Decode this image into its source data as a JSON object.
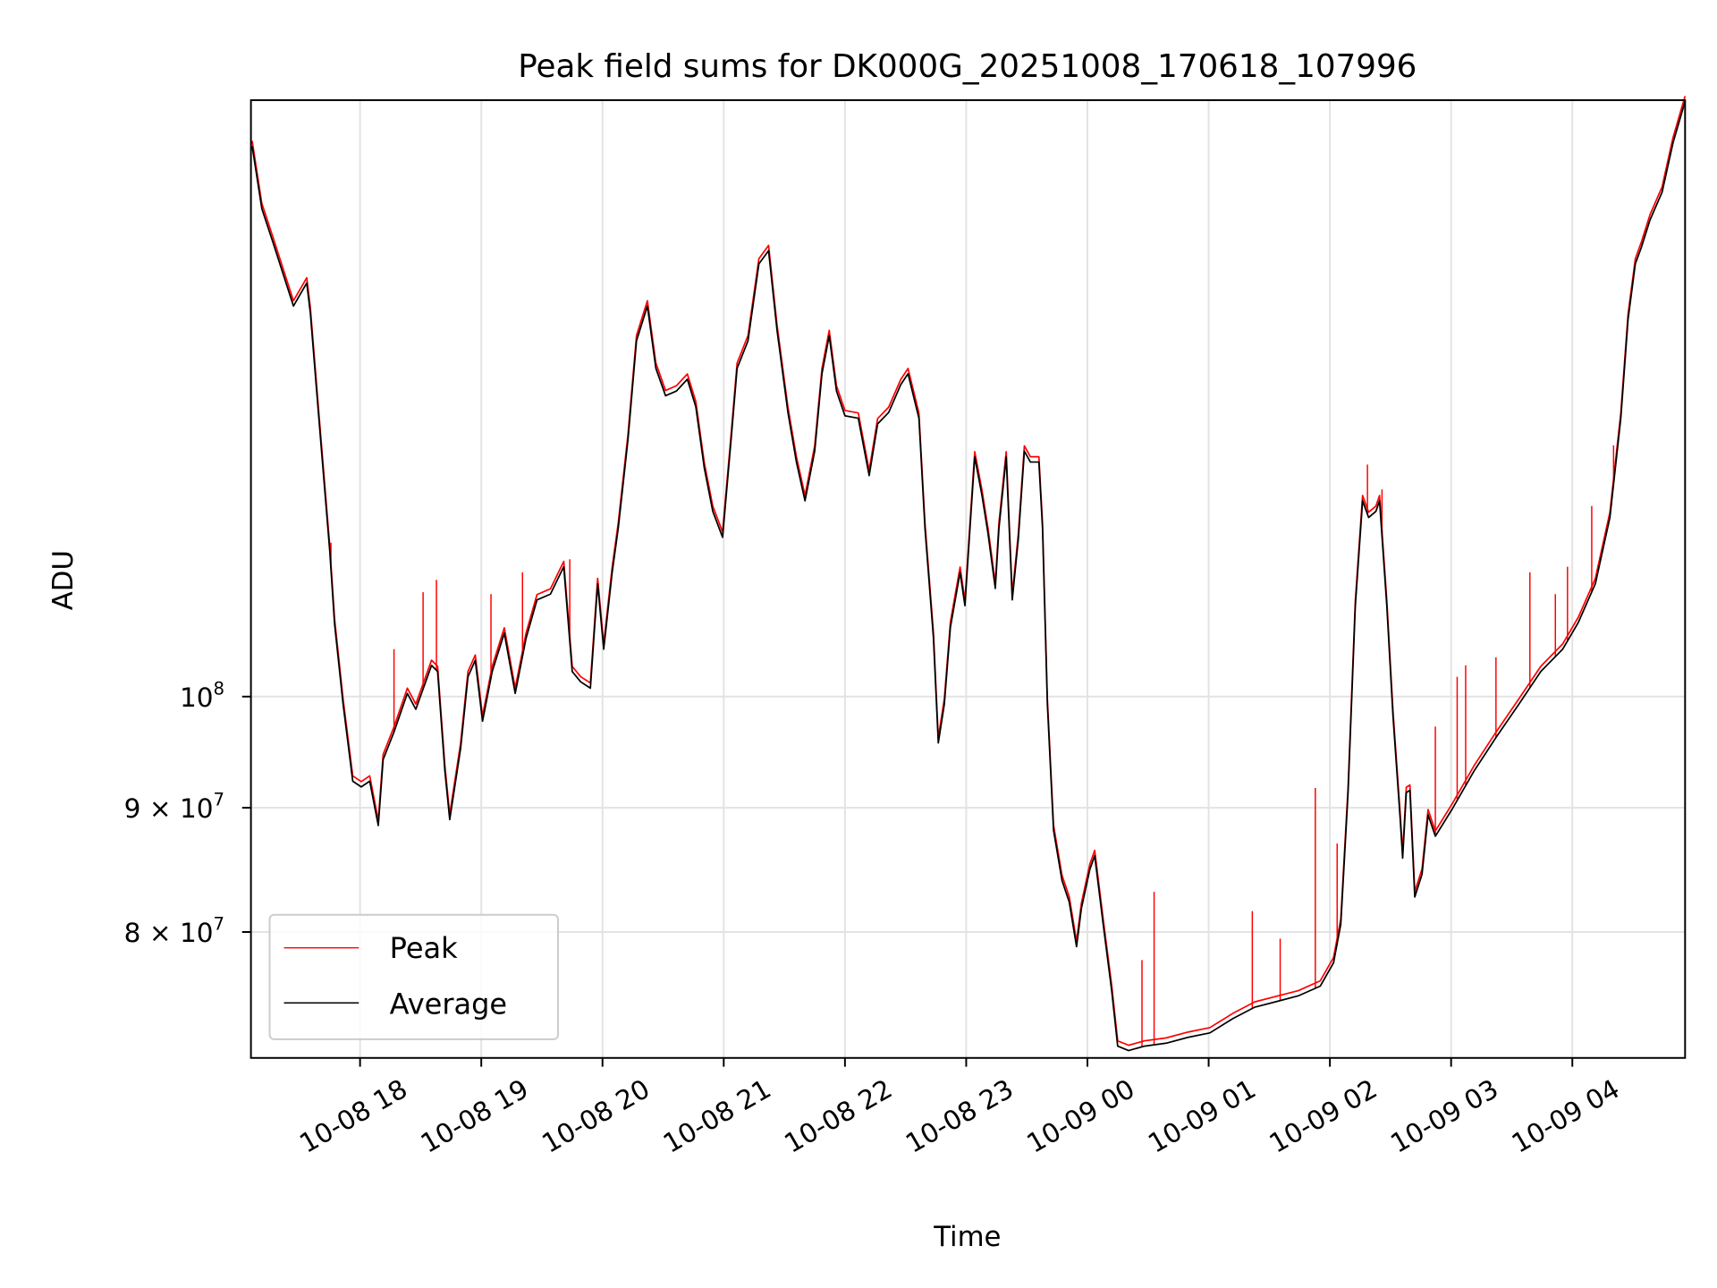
{
  "chart_data": {
    "type": "line",
    "title": "Peak field sums for DK000G_20251008_170618_107996",
    "xlabel": "Time",
    "ylabel": "ADU",
    "x_units": "hours since 10-08 00:00",
    "xlim": [
      17.1,
      28.93
    ],
    "ylim": [
      71000000,
      176000000
    ],
    "yscale": "log",
    "grid": true,
    "legend_placement": "lower-left",
    "x_ticks": [
      {
        "value": 18,
        "label": "10-08 18"
      },
      {
        "value": 19,
        "label": "10-08 19"
      },
      {
        "value": 20,
        "label": "10-08 20"
      },
      {
        "value": 21,
        "label": "10-08 21"
      },
      {
        "value": 22,
        "label": "10-08 22"
      },
      {
        "value": 23,
        "label": "10-08 23"
      },
      {
        "value": 24,
        "label": "10-09 00"
      },
      {
        "value": 25,
        "label": "10-09 01"
      },
      {
        "value": 26,
        "label": "10-09 02"
      },
      {
        "value": 27,
        "label": "10-09 03"
      },
      {
        "value": 28,
        "label": "10-09 04"
      }
    ],
    "y_ticks": [
      {
        "value": 100000000,
        "mant": "10",
        "coef": "",
        "exp": "8"
      },
      {
        "value": 90000000,
        "mant": "10",
        "coef": "9 × ",
        "exp": "7"
      },
      {
        "value": 80000000,
        "mant": "10",
        "coef": "8 × ",
        "exp": "7"
      }
    ],
    "series": [
      {
        "name": "Average",
        "color": "#000000",
        "points": [
          [
            17.11,
            168.5
          ],
          [
            17.19,
            158.8
          ],
          [
            17.28,
            153.9
          ],
          [
            17.45,
            144.8
          ],
          [
            17.56,
            148.0
          ],
          [
            17.59,
            143.8
          ],
          [
            17.66,
            130.2
          ],
          [
            17.75,
            114.8
          ],
          [
            17.79,
            107.1
          ],
          [
            17.86,
            99.3
          ],
          [
            17.94,
            92.3
          ],
          [
            18.01,
            91.8
          ],
          [
            18.08,
            92.3
          ],
          [
            18.15,
            88.5
          ],
          [
            18.19,
            94.2
          ],
          [
            18.28,
            96.7
          ],
          [
            18.39,
            100.3
          ],
          [
            18.46,
            98.8
          ],
          [
            18.59,
            103.0
          ],
          [
            18.64,
            102.4
          ],
          [
            18.7,
            93.2
          ],
          [
            18.74,
            89.0
          ],
          [
            18.83,
            95.2
          ],
          [
            18.89,
            101.9
          ],
          [
            18.95,
            103.5
          ],
          [
            19.01,
            97.7
          ],
          [
            19.09,
            102.4
          ],
          [
            19.19,
            106.2
          ],
          [
            19.28,
            100.3
          ],
          [
            19.37,
            105.7
          ],
          [
            19.46,
            109.6
          ],
          [
            19.57,
            110.2
          ],
          [
            19.68,
            113.1
          ],
          [
            19.75,
            102.4
          ],
          [
            19.82,
            101.4
          ],
          [
            19.9,
            100.8
          ],
          [
            19.96,
            111.3
          ],
          [
            20.01,
            104.6
          ],
          [
            20.08,
            112.5
          ],
          [
            20.13,
            117.3
          ],
          [
            20.21,
            127.5
          ],
          [
            20.28,
            140.1
          ],
          [
            20.37,
            144.8
          ],
          [
            20.44,
            136.5
          ],
          [
            20.52,
            133.0
          ],
          [
            20.61,
            133.6
          ],
          [
            20.7,
            135.1
          ],
          [
            20.77,
            131.6
          ],
          [
            20.84,
            124.2
          ],
          [
            20.91,
            119.2
          ],
          [
            20.99,
            116.3
          ],
          [
            21.06,
            127.5
          ],
          [
            21.11,
            136.5
          ],
          [
            21.2,
            140.1
          ],
          [
            21.29,
            150.7
          ],
          [
            21.37,
            152.6
          ],
          [
            21.44,
            141.5
          ],
          [
            21.53,
            130.9
          ],
          [
            21.6,
            124.9
          ],
          [
            21.67,
            120.4
          ],
          [
            21.75,
            126.2
          ],
          [
            21.81,
            135.8
          ],
          [
            21.87,
            140.8
          ],
          [
            21.93,
            133.6
          ],
          [
            22.0,
            130.5
          ],
          [
            22.11,
            130.2
          ],
          [
            22.2,
            123.3
          ],
          [
            22.27,
            129.5
          ],
          [
            22.36,
            130.9
          ],
          [
            22.46,
            134.4
          ],
          [
            22.52,
            135.8
          ],
          [
            22.61,
            130.2
          ],
          [
            22.66,
            117.3
          ],
          [
            22.73,
            105.7
          ],
          [
            22.77,
            95.7
          ],
          [
            22.82,
            99.3
          ],
          [
            22.87,
            106.8
          ],
          [
            22.95,
            112.5
          ],
          [
            22.99,
            109.0
          ],
          [
            23.04,
            119.2
          ],
          [
            23.07,
            125.5
          ],
          [
            23.13,
            121.0
          ],
          [
            23.18,
            116.7
          ],
          [
            23.24,
            110.8
          ],
          [
            23.27,
            117.3
          ],
          [
            23.33,
            125.5
          ],
          [
            23.38,
            109.6
          ],
          [
            23.43,
            116.1
          ],
          [
            23.48,
            126.2
          ],
          [
            23.53,
            124.9
          ],
          [
            23.6,
            124.9
          ],
          [
            23.63,
            117.3
          ],
          [
            23.67,
            99.3
          ],
          [
            23.72,
            88.1
          ],
          [
            23.79,
            84.0
          ],
          [
            23.85,
            82.3
          ],
          [
            23.91,
            78.9
          ],
          [
            23.95,
            81.8
          ],
          [
            24.02,
            84.9
          ],
          [
            24.06,
            86.0
          ],
          [
            24.13,
            80.6
          ],
          [
            24.2,
            75.7
          ],
          [
            24.25,
            71.8
          ],
          [
            24.34,
            71.5
          ],
          [
            24.47,
            71.8
          ],
          [
            24.65,
            72.0
          ],
          [
            24.83,
            72.4
          ],
          [
            25.01,
            72.7
          ],
          [
            25.2,
            73.7
          ],
          [
            25.38,
            74.5
          ],
          [
            25.56,
            74.9
          ],
          [
            25.74,
            75.3
          ],
          [
            25.92,
            76.0
          ],
          [
            26.03,
            77.7
          ],
          [
            26.09,
            80.6
          ],
          [
            26.15,
            91.3
          ],
          [
            26.21,
            109.0
          ],
          [
            26.27,
            120.4
          ],
          [
            26.32,
            118.5
          ],
          [
            26.38,
            119.2
          ],
          [
            26.41,
            120.4
          ],
          [
            26.47,
            109.0
          ],
          [
            26.52,
            98.2
          ],
          [
            26.58,
            89.0
          ],
          [
            26.6,
            85.8
          ],
          [
            26.63,
            91.3
          ],
          [
            26.66,
            91.5
          ],
          [
            26.7,
            82.7
          ],
          [
            26.76,
            84.5
          ],
          [
            26.81,
            89.4
          ],
          [
            26.87,
            87.6
          ],
          [
            27.01,
            89.9
          ],
          [
            27.19,
            93.2
          ],
          [
            27.37,
            96.2
          ],
          [
            27.56,
            99.3
          ],
          [
            27.74,
            102.4
          ],
          [
            27.92,
            104.6
          ],
          [
            28.05,
            107.3
          ],
          [
            28.19,
            111.3
          ],
          [
            28.31,
            118.5
          ],
          [
            28.4,
            130.2
          ],
          [
            28.46,
            143.0
          ],
          [
            28.52,
            150.7
          ],
          [
            28.57,
            153.1
          ],
          [
            28.64,
            157.1
          ],
          [
            28.74,
            161.3
          ],
          [
            28.83,
            169.0
          ],
          [
            28.93,
            175.8
          ]
        ]
      },
      {
        "name": "Peak",
        "color": "#ff0000",
        "ratio_to_average": 1.005,
        "spikes": [
          [
            17.76,
            115.7
          ],
          [
            18.28,
            104.6
          ],
          [
            18.52,
            110.4
          ],
          [
            18.63,
            111.7
          ],
          [
            19.08,
            110.2
          ],
          [
            19.34,
            112.5
          ],
          [
            19.73,
            113.9
          ],
          [
            24.45,
            77.9
          ],
          [
            24.55,
            83.1
          ],
          [
            25.36,
            81.6
          ],
          [
            25.59,
            79.5
          ],
          [
            25.88,
            91.7
          ],
          [
            26.06,
            87.0
          ],
          [
            26.31,
            124.6
          ],
          [
            26.43,
            121.7
          ],
          [
            26.87,
            97.2
          ],
          [
            27.05,
            101.9
          ],
          [
            27.12,
            103.0
          ],
          [
            27.37,
            103.8
          ],
          [
            27.65,
            112.5
          ],
          [
            27.86,
            110.2
          ],
          [
            27.96,
            113.1
          ],
          [
            28.16,
            119.8
          ],
          [
            28.34,
            126.9
          ]
        ]
      }
    ],
    "value_units": "millions of ADU",
    "legend": [
      "Peak",
      "Average"
    ]
  }
}
